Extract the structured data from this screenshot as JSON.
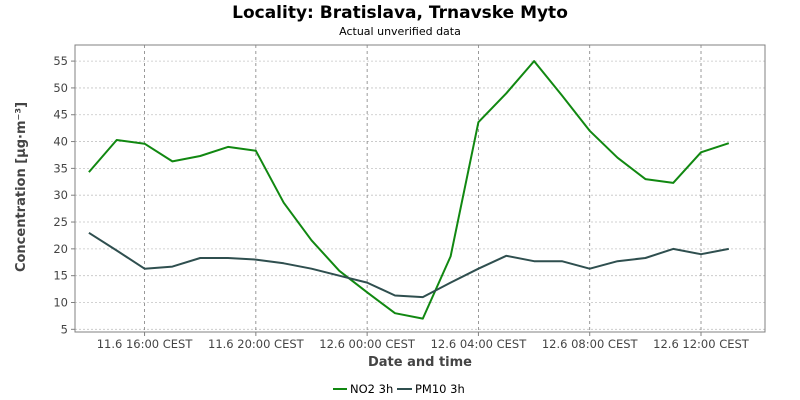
{
  "chart_data": {
    "type": "line",
    "title": "Locality: Bratislava, Trnavske Myto",
    "subtitle": "Actual unverified data",
    "xlabel": "Date and time",
    "ylabel": "Concentration [µg·m⁻³]",
    "ylim": [
      4.5,
      58
    ],
    "y_ticks": [
      5,
      10,
      15,
      20,
      25,
      30,
      35,
      40,
      45,
      50,
      55
    ],
    "x_ticks": [
      {
        "hour": 16,
        "label": "11.6 16:00 CEST"
      },
      {
        "hour": 20,
        "label": "11.6 20:00 CEST"
      },
      {
        "hour": 24,
        "label": "12.6 00:00 CEST"
      },
      {
        "hour": 28,
        "label": "12.6 04:00 CEST"
      },
      {
        "hour": 32,
        "label": "12.6 08:00 CEST"
      },
      {
        "hour": 36,
        "label": "12.6 12:00 CEST"
      }
    ],
    "xlim": [
      13.5,
      38.3
    ],
    "grid": true,
    "legend_position": "bottom-center",
    "series": [
      {
        "name": "NO2 3h",
        "color": "#118811",
        "x": [
          14,
          15,
          16,
          17,
          18,
          19,
          20,
          21,
          22,
          23,
          24,
          25,
          26,
          27,
          28,
          29,
          30,
          31,
          32,
          33,
          34,
          35,
          36,
          37
        ],
        "values": [
          34.3,
          40.3,
          39.6,
          36.3,
          37.3,
          39.0,
          38.3,
          28.6,
          21.6,
          15.9,
          11.9,
          8.0,
          7.0,
          18.6,
          43.6,
          49.0,
          55.0,
          48.6,
          42.0,
          37.0,
          33.0,
          32.3,
          38.0,
          39.7
        ]
      },
      {
        "name": "PM10 3h",
        "color": "#2f4f4f",
        "x": [
          14,
          15,
          16,
          17,
          18,
          19,
          20,
          21,
          22,
          23,
          24,
          25,
          26,
          27,
          28,
          29,
          30,
          31,
          32,
          33,
          34,
          35,
          36,
          37
        ],
        "values": [
          23.0,
          19.7,
          16.3,
          16.7,
          18.3,
          18.3,
          18.0,
          17.3,
          16.3,
          15.0,
          13.7,
          11.3,
          11.0,
          13.7,
          16.3,
          18.7,
          17.7,
          17.7,
          16.3,
          17.7,
          18.3,
          20.0,
          19.0,
          20.0
        ]
      }
    ]
  }
}
